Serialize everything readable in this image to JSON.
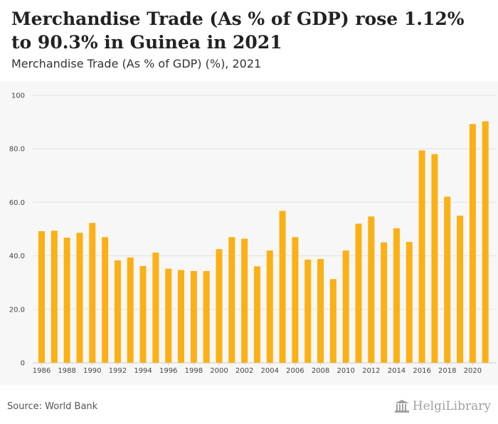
{
  "header": {
    "title": "Merchandise Trade (As % of GDP) rose 1.12% to 90.3% in Guinea in 2021",
    "subtitle": "Merchandise Trade (As % of GDP) (%), 2021"
  },
  "footer": {
    "source": "Source: World Bank",
    "logo_text": "HelgiLibrary"
  },
  "chart_data": {
    "type": "bar",
    "title": "",
    "xlabel": "",
    "ylabel": "",
    "ylim": [
      0,
      100
    ],
    "yticks": [
      "0",
      "20.0",
      "40.0",
      "60.0",
      "80.0",
      "100"
    ],
    "grid": true,
    "bar_color": "#fbb014",
    "categories": [
      "1986",
      "1987",
      "1988",
      "1989",
      "1990",
      "1991",
      "1992",
      "1993",
      "1994",
      "1995",
      "1996",
      "1997",
      "1998",
      "1999",
      "2000",
      "2001",
      "2002",
      "2003",
      "2004",
      "2005",
      "2006",
      "2007",
      "2008",
      "2009",
      "2010",
      "2011",
      "2012",
      "2013",
      "2014",
      "2015",
      "2016",
      "2017",
      "2018",
      "2019",
      "2020",
      "2021"
    ],
    "xtick_labels": [
      "1986",
      "1988",
      "1990",
      "1992",
      "1994",
      "1996",
      "1998",
      "2000",
      "2002",
      "2004",
      "2006",
      "2008",
      "2010",
      "2012",
      "2014",
      "2016",
      "2018",
      "2020"
    ],
    "values": [
      49.2,
      49.4,
      46.8,
      48.6,
      52.3,
      47.0,
      38.3,
      39.4,
      36.2,
      41.2,
      35.2,
      34.7,
      34.3,
      34.3,
      42.5,
      47.0,
      46.4,
      36.1,
      42.0,
      56.8,
      47.0,
      38.6,
      38.8,
      31.3,
      42.0,
      52.0,
      54.7,
      45.0,
      50.3,
      45.2,
      79.4,
      78.0,
      62.1,
      55.0,
      89.3,
      90.3
    ]
  }
}
